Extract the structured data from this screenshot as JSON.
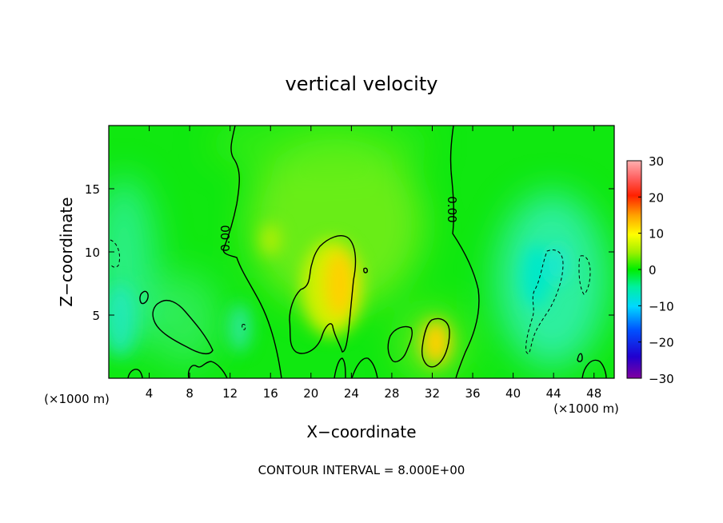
{
  "chart_data": {
    "type": "heatmap",
    "title": "vertical velocity",
    "xlabel": "X−coordinate",
    "ylabel": "Z−coordinate",
    "x_unit_left": "(×1000 m)",
    "x_unit_right": "(×1000 m)",
    "xlim": [
      0,
      50
    ],
    "ylim": [
      0,
      20
    ],
    "x_ticks": [
      4,
      8,
      12,
      16,
      20,
      24,
      28,
      32,
      36,
      40,
      44,
      48
    ],
    "x_tick_labels": [
      "4",
      "8",
      "12",
      "16",
      "20",
      "24",
      "28",
      "32",
      "36",
      "40",
      "44",
      "48"
    ],
    "y_ticks": [
      5,
      10,
      15
    ],
    "y_tick_labels": [
      "5",
      "10",
      "15"
    ],
    "colorbar": {
      "min": -30,
      "max": 30,
      "ticks": [
        30,
        20,
        10,
        0,
        -10,
        -20,
        -30
      ],
      "tick_labels": [
        "30",
        "20",
        "10",
        "0",
        "−10",
        "−20",
        "−30"
      ]
    },
    "contour_labels": [
      "0.00",
      "0.00"
    ],
    "footer": "CONTOUR INTERVAL = 8.000E+00",
    "field_features": [
      {
        "kind": "updraft",
        "x": 22.5,
        "z": 6.5,
        "value": 12
      },
      {
        "kind": "updraft",
        "x": 31.5,
        "z": 2.5,
        "value": 11
      },
      {
        "kind": "updraft",
        "x": 16.3,
        "z": 11.0,
        "value": 6
      },
      {
        "kind": "downdraft",
        "x": 44.0,
        "z": 6.0,
        "value": -8
      },
      {
        "kind": "downdraft",
        "x": 1.5,
        "z": 6.0,
        "value": -6
      },
      {
        "kind": "downdraft",
        "x": 13.5,
        "z": 4.0,
        "value": -5
      }
    ]
  }
}
